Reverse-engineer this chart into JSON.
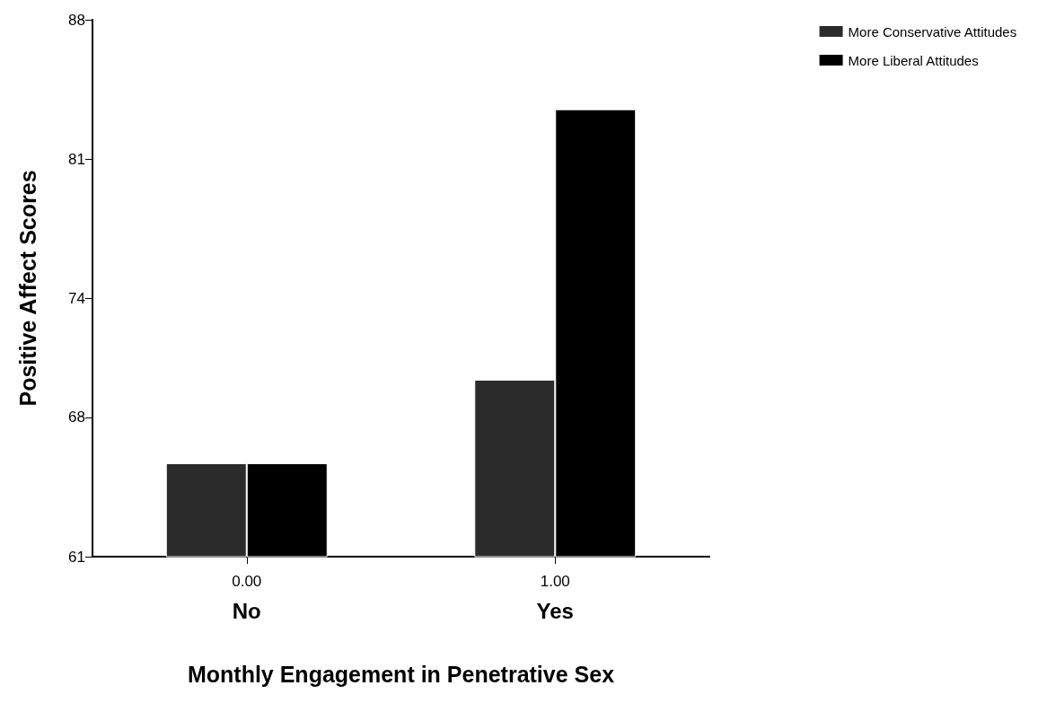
{
  "chart_data": {
    "type": "bar",
    "xlabel": "Monthly Engagement in Penetrative Sex",
    "ylabel": "Positive Affect Scores",
    "categories": [
      "0.00\nNo",
      "1.00\nYes"
    ],
    "series": [
      {
        "name": "More Conservative Attitudes",
        "color": "#2b2b2b",
        "values": [
          65.7,
          69.9
        ]
      },
      {
        "name": "More Liberal Attitudes",
        "color": "#000000",
        "values": [
          65.7,
          83.5
        ]
      }
    ],
    "ylim": [
      61,
      88
    ],
    "yticks": [
      61,
      68,
      74,
      81,
      88
    ],
    "grid": false,
    "legend": "top right"
  }
}
